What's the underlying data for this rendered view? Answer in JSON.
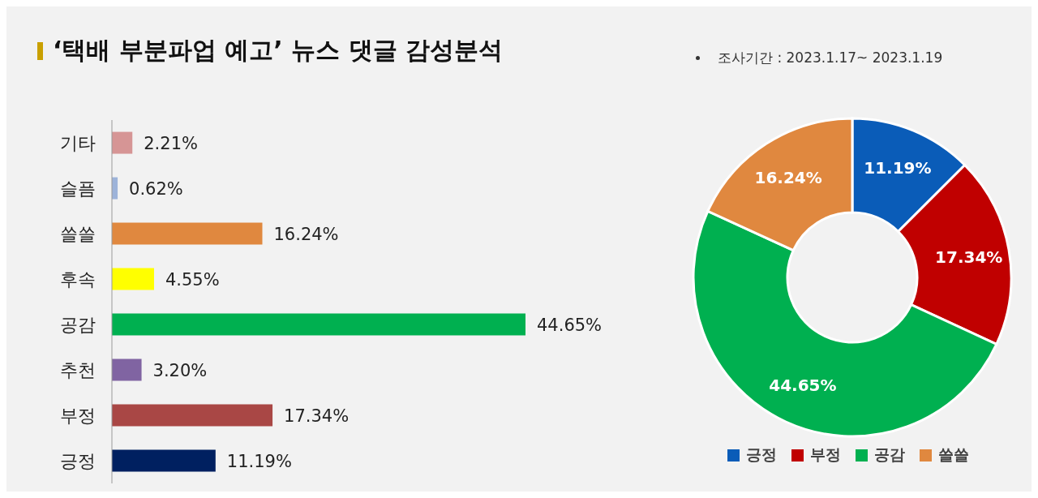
{
  "chart_data": [
    {
      "type": "bar",
      "orientation": "horizontal",
      "title": "‘택배 부분파업 예고’ 뉴스 댓글 감성분석",
      "categories": [
        "기타",
        "슬픔",
        "쓸쓸",
        "후속",
        "공감",
        "추천",
        "부정",
        "긍정"
      ],
      "values": [
        2.21,
        0.62,
        16.24,
        4.55,
        44.65,
        3.2,
        17.34,
        11.19
      ],
      "colors": [
        "#d69595",
        "#9db3d9",
        "#e0883f",
        "#ffff00",
        "#00b050",
        "#8064a2",
        "#a94745",
        "#002060"
      ],
      "value_labels": [
        "2.21%",
        "0.62%",
        "16.24%",
        "4.55%",
        "44.65%",
        "3.20%",
        "17.34%",
        "11.19%"
      ]
    },
    {
      "type": "donut",
      "annotations": [
        "조사기간 : 2023.1.17~ 2023.1.19"
      ],
      "categories": [
        "긍정",
        "부정",
        "공감",
        "쓸쓸"
      ],
      "values": [
        11.19,
        17.34,
        44.65,
        16.24
      ],
      "colors": [
        "#0a5cb8",
        "#c00000",
        "#00b050",
        "#e0883f"
      ],
      "value_labels": [
        "11.19%",
        "17.34%",
        "44.65%",
        "16.24%"
      ],
      "legend": "bottom"
    }
  ]
}
